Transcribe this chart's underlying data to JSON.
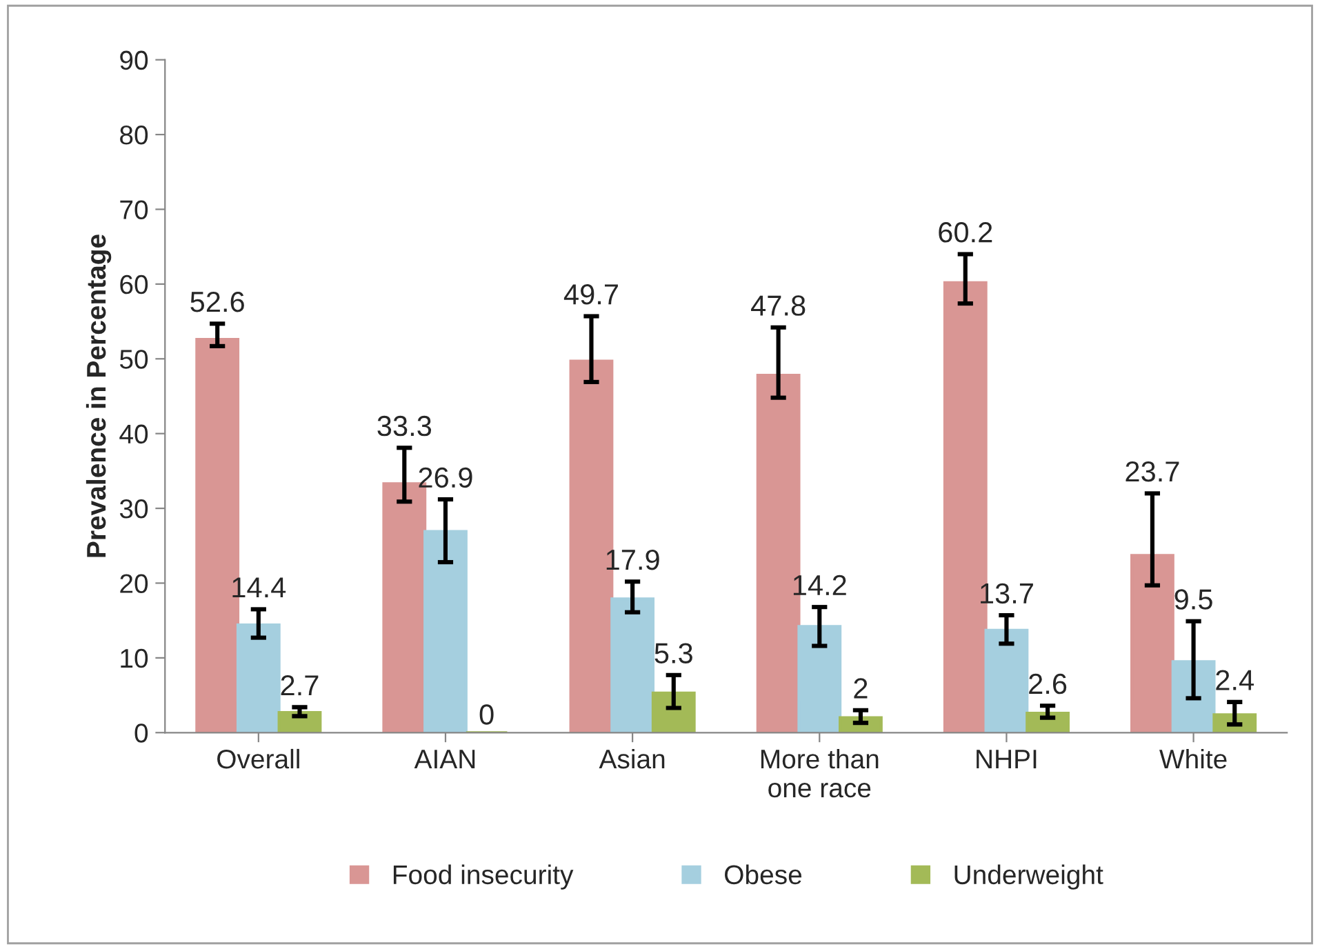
{
  "chart_data": {
    "type": "bar",
    "ylabel": "Prevalence in Percentage",
    "categories": [
      "Overall",
      "AIAN",
      "Asian",
      "More than\none race",
      "NHPI",
      "White"
    ],
    "series": [
      {
        "name": "Food insecurity",
        "color": "#d99694",
        "values": [
          52.6,
          33.3,
          49.7,
          47.8,
          60.2,
          23.7
        ],
        "errors": [
          [
            51.7,
            54.7
          ],
          [
            30.9,
            38.1
          ],
          [
            46.9,
            55.7
          ],
          [
            44.8,
            54.2
          ],
          [
            57.4,
            64.0
          ],
          [
            19.7,
            32.0
          ]
        ]
      },
      {
        "name": "Obese",
        "color": "#a5cfdf",
        "values": [
          14.4,
          26.9,
          17.9,
          14.2,
          13.7,
          9.5
        ],
        "errors": [
          [
            12.7,
            16.5
          ],
          [
            22.8,
            31.2
          ],
          [
            16.1,
            20.2
          ],
          [
            11.6,
            16.8
          ],
          [
            11.9,
            15.7
          ],
          [
            4.6,
            14.9
          ]
        ]
      },
      {
        "name": "Underweight",
        "color": "#a3ba57",
        "values": [
          2.7,
          0,
          5.3,
          2,
          2.6,
          2.4
        ],
        "errors": [
          [
            2.2,
            3.4
          ],
          null,
          [
            3.3,
            7.7
          ],
          [
            1.3,
            3.0
          ],
          [
            2.0,
            3.6
          ],
          [
            1.1,
            4.1
          ]
        ]
      }
    ],
    "ylim": [
      0,
      90
    ],
    "yticks": [
      0,
      10,
      20,
      30,
      40,
      50,
      60,
      70,
      80,
      90
    ],
    "data_labels": true,
    "grid": false,
    "legend": "bottom"
  }
}
